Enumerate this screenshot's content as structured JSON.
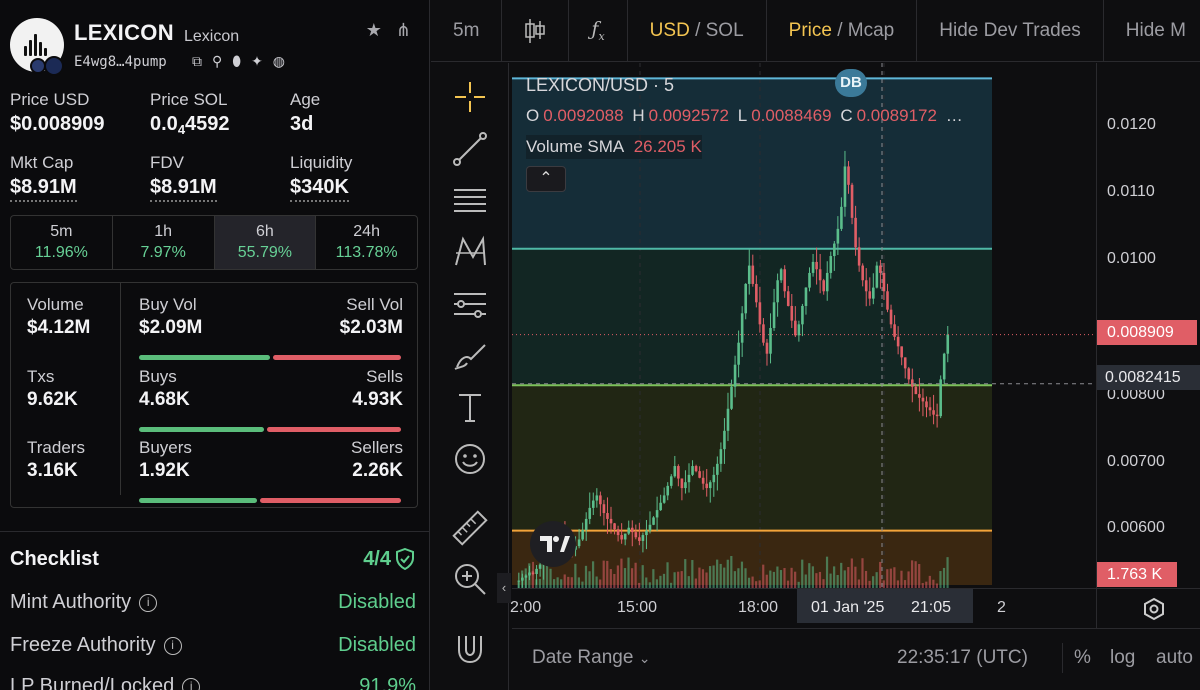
{
  "token": {
    "name": "LEXICON",
    "subtitle": "Lexicon",
    "address": "E4wg8…4pump"
  },
  "metrics": [
    {
      "label": "Price USD",
      "value": "$0.008909"
    },
    {
      "label": "Price SOL",
      "value_prefix": "0.0",
      "value_sub": "4",
      "value_suffix": "4592"
    },
    {
      "label": "Age",
      "value": "3d"
    },
    {
      "label": "Mkt Cap",
      "value": "$8.91M"
    },
    {
      "label": "FDV",
      "value": "$8.91M"
    },
    {
      "label": "Liquidity",
      "value": "$340K"
    }
  ],
  "timeframes": [
    {
      "label": "5m",
      "change": "11.96%"
    },
    {
      "label": "1h",
      "change": "7.97%"
    },
    {
      "label": "6h",
      "change": "55.79%"
    },
    {
      "label": "24h",
      "change": "113.78%"
    }
  ],
  "stats": {
    "volume": {
      "label": "Volume",
      "value": "$4.12M"
    },
    "buy_vol": {
      "label": "Buy Vol",
      "value": "$2.09M"
    },
    "sell_vol": {
      "label": "Sell Vol",
      "value": "$2.03M"
    },
    "txs": {
      "label": "Txs",
      "value": "9.62K"
    },
    "buys": {
      "label": "Buys",
      "value": "4.68K"
    },
    "sells": {
      "label": "Sells",
      "value": "4.93K"
    },
    "traders": {
      "label": "Traders",
      "value": "3.16K"
    },
    "buyers": {
      "label": "Buyers",
      "value": "1.92K"
    },
    "sellers": {
      "label": "Sellers",
      "value": "2.26K"
    }
  },
  "checklist": {
    "title": "Checklist",
    "score": "4/4",
    "items": [
      {
        "name": "Mint Authority",
        "status": "Disabled"
      },
      {
        "name": "Freeze Authority",
        "status": "Disabled"
      },
      {
        "name": "LP Burned/Locked",
        "status": "91.9%"
      }
    ]
  },
  "toolbar": {
    "interval": "5m",
    "currency_active": "USD",
    "currency_other": "/ SOL",
    "price_active": "Price",
    "price_other": "/ Mcap",
    "hide_dev": "Hide Dev Trades",
    "hide_more": "Hide M"
  },
  "chart": {
    "symbol": "LEXICON/USD · 5",
    "badge": "DB",
    "o_label": "O",
    "o": "0.0092088",
    "h_label": "H",
    "h": "0.0092572",
    "l_label": "L",
    "l": "0.0088469",
    "c_label": "C",
    "c": "0.0089172",
    "more": "…",
    "vol_label": "Volume SMA",
    "vol": "26.205 K",
    "price_tag": "0.008909",
    "cross_tag": "0.0082415",
    "vol_tag": "1.763 K",
    "time_labels": [
      "2:00",
      "15:00",
      "18:00",
      "01 Jan '25",
      "21:05",
      "2"
    ],
    "date_range": "Date Range",
    "clock": "22:35:17 (UTC)",
    "pct": "%",
    "log": "log",
    "auto": "auto"
  },
  "chart_data": {
    "type": "candlestick",
    "y_ticks": [
      "0.0120",
      "0.0110",
      "0.0100",
      "0.00800",
      "0.00700",
      "0.00600"
    ],
    "ylim": [
      0.0055,
      0.0125
    ],
    "levels": [
      {
        "price": 0.0124,
        "color": "#5fb6d8"
      },
      {
        "price": 0.01008,
        "color": "#4fb8a6"
      },
      {
        "price": 0.00822,
        "color": "#7cc25a"
      },
      {
        "price": 0.00624,
        "color": "#f3a43b"
      }
    ],
    "close_series": [
      0.00555,
      0.00556,
      0.0056,
      0.00563,
      0.00567,
      0.00565,
      0.00572,
      0.00578,
      0.00585,
      0.0059,
      0.006,
      0.00605,
      0.00612,
      0.0062,
      0.00615,
      0.00605,
      0.00598,
      0.00603,
      0.00612,
      0.00625,
      0.0064,
      0.00655,
      0.00665,
      0.00672,
      0.0066,
      0.00648,
      0.0064,
      0.00634,
      0.00626,
      0.00618,
      0.00612,
      0.0062,
      0.00628,
      0.00622,
      0.00615,
      0.0061,
      0.00618,
      0.00624,
      0.00632,
      0.00642,
      0.00652,
      0.00662,
      0.00672,
      0.00685,
      0.00698,
      0.00712,
      0.00695,
      0.00682,
      0.0069,
      0.007,
      0.00712,
      0.00705,
      0.00696,
      0.00688,
      0.00682,
      0.0069,
      0.007,
      0.00715,
      0.00735,
      0.0076,
      0.0079,
      0.0082,
      0.0085,
      0.0088,
      0.0092,
      0.0096,
      0.00985,
      0.0096,
      0.00935,
      0.00905,
      0.0088,
      0.00865,
      0.009,
      0.00935,
      0.00965,
      0.0098,
      0.0095,
      0.0093,
      0.0091,
      0.0089,
      0.00905,
      0.0093,
      0.00955,
      0.00975,
      0.0099,
      0.0098,
      0.00965,
      0.0095,
      0.00975,
      0.00998,
      0.01015,
      0.01035,
      0.01065,
      0.0112,
      0.01095,
      0.0105,
      0.0101,
      0.00985,
      0.00965,
      0.0095,
      0.0094,
      0.00955,
      0.00985,
      0.00975,
      0.0095,
      0.00925,
      0.00905,
      0.00888,
      0.00875,
      0.0086,
      0.00845,
      0.0083,
      0.0082,
      0.0081,
      0.00805,
      0.008,
      0.00792,
      0.00788,
      0.00782,
      0.0078,
      0.0083,
      0.00865,
      0.00891
    ]
  }
}
